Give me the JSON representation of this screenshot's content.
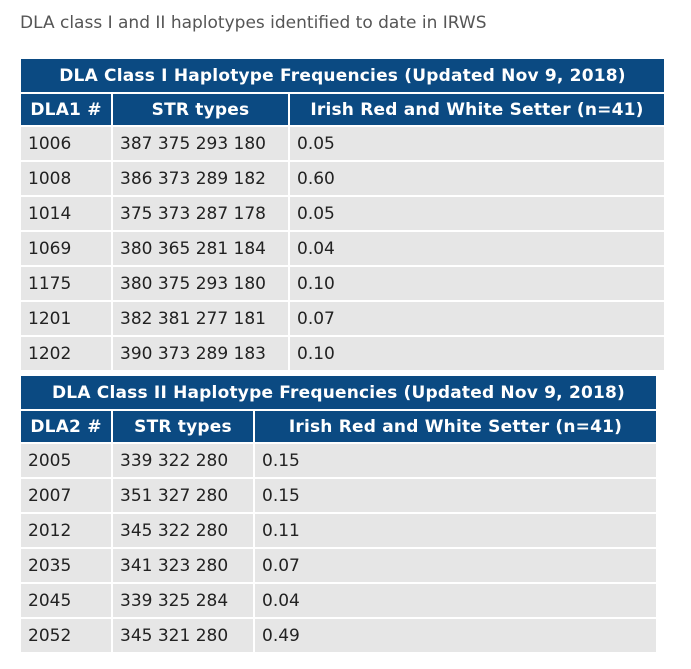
{
  "page": {
    "title": "DLA class I and II haplotypes identified to date in IRWS"
  },
  "class1": {
    "caption": "DLA Class I Haplotype Frequencies (Updated Nov 9, 2018)",
    "headers": [
      "DLA1 #",
      "STR types",
      "Irish Red and White Setter (n=41)"
    ],
    "rows": [
      [
        "1006",
        "387 375 293 180",
        "0.05"
      ],
      [
        "1008",
        "386 373 289 182",
        "0.60"
      ],
      [
        "1014",
        "375 373 287 178",
        "0.05"
      ],
      [
        "1069",
        "380 365 281 184",
        "0.04"
      ],
      [
        "1175",
        "380 375 293 180",
        "0.10"
      ],
      [
        "1201",
        "382 381 277 181",
        "0.07"
      ],
      [
        "1202",
        "390 373 289 183",
        "0.10"
      ]
    ]
  },
  "class2": {
    "caption": "DLA Class II Haplotype Frequencies (Updated Nov 9, 2018)",
    "headers": [
      "DLA2 #",
      "STR types",
      "Irish Red and White Setter (n=41)"
    ],
    "rows": [
      [
        "2005",
        "339 322 280",
        "0.15"
      ],
      [
        "2007",
        "351 327 280",
        "0.15"
      ],
      [
        "2012",
        "345 322 280",
        "0.11"
      ],
      [
        "2035",
        "341 323 280",
        "0.07"
      ],
      [
        "2045",
        "339 325 284",
        "0.04"
      ],
      [
        "2052",
        "345 321 280",
        "0.49"
      ]
    ]
  }
}
